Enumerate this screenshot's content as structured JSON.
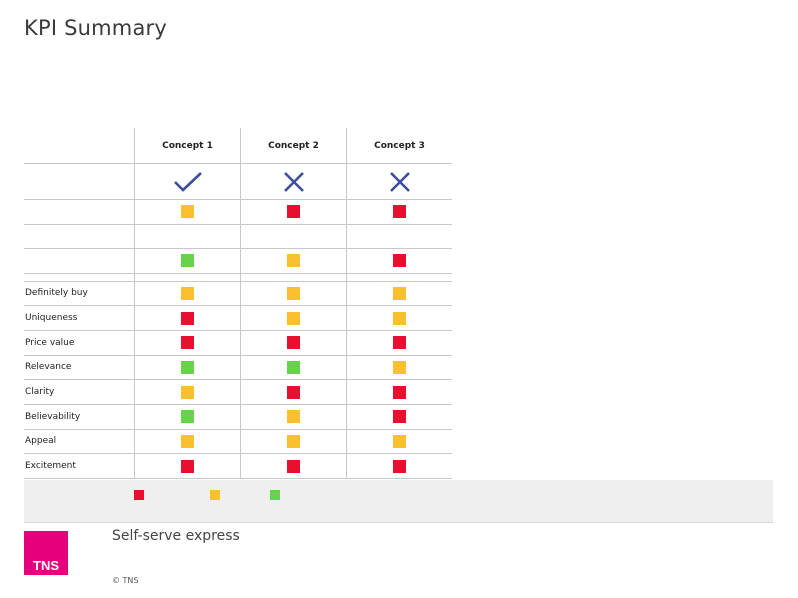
{
  "page": {
    "title": "KPI Summary"
  },
  "table": {
    "columns": [
      "Concept 1",
      "Concept 2",
      "Concept 3"
    ],
    "verdicts": [
      "check",
      "cross",
      "cross"
    ],
    "status_rows": [
      {
        "label": "",
        "values": [
          "amber",
          "red",
          "red"
        ]
      },
      {
        "label": "",
        "values": [
          "",
          "",
          ""
        ]
      },
      {
        "label": "",
        "values": [
          "green",
          "amber",
          "red"
        ]
      }
    ],
    "attribute_rows": [
      {
        "label": "Definitely buy",
        "values": [
          "amber",
          "amber",
          "amber"
        ]
      },
      {
        "label": "Uniqueness",
        "values": [
          "red",
          "amber",
          "amber"
        ]
      },
      {
        "label": "Price value",
        "values": [
          "red",
          "red",
          "red"
        ]
      },
      {
        "label": "Relevance",
        "values": [
          "green",
          "green",
          "amber"
        ]
      },
      {
        "label": "Clarity",
        "values": [
          "amber",
          "red",
          "red"
        ]
      },
      {
        "label": "Believability",
        "values": [
          "green",
          "amber",
          "red"
        ]
      },
      {
        "label": "Appeal",
        "values": [
          "amber",
          "amber",
          "amber"
        ]
      },
      {
        "label": "Excitement",
        "values": [
          "red",
          "red",
          "red"
        ]
      }
    ]
  },
  "legend": {
    "items": [
      {
        "color": "red",
        "label": ""
      },
      {
        "color": "amber",
        "label": ""
      },
      {
        "color": "green",
        "label": ""
      }
    ]
  },
  "colors": {
    "red": "#e8102e",
    "amber": "#fbc02d",
    "green": "#66d34a",
    "icon": "#3d4f9a",
    "logo": "#e6007e"
  },
  "footer": {
    "logo_text": "TNS",
    "tagline": "Self-serve express",
    "copyright": "© TNS"
  }
}
